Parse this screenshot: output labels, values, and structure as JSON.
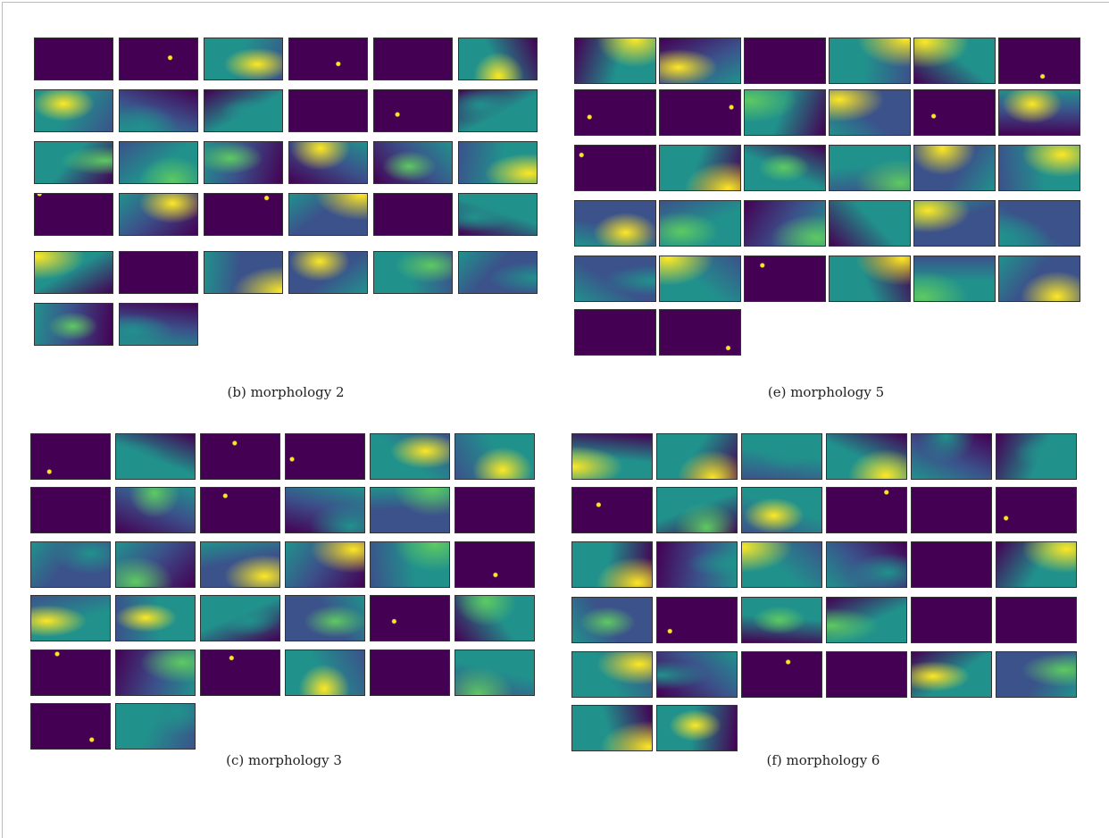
{
  "panels": [
    {
      "caption": "(b) morphology 2"
    },
    {
      "caption": "(e) morphology 5"
    },
    {
      "caption": "(c) morphology 3"
    },
    {
      "caption": "(f) morphology 6"
    }
  ]
}
